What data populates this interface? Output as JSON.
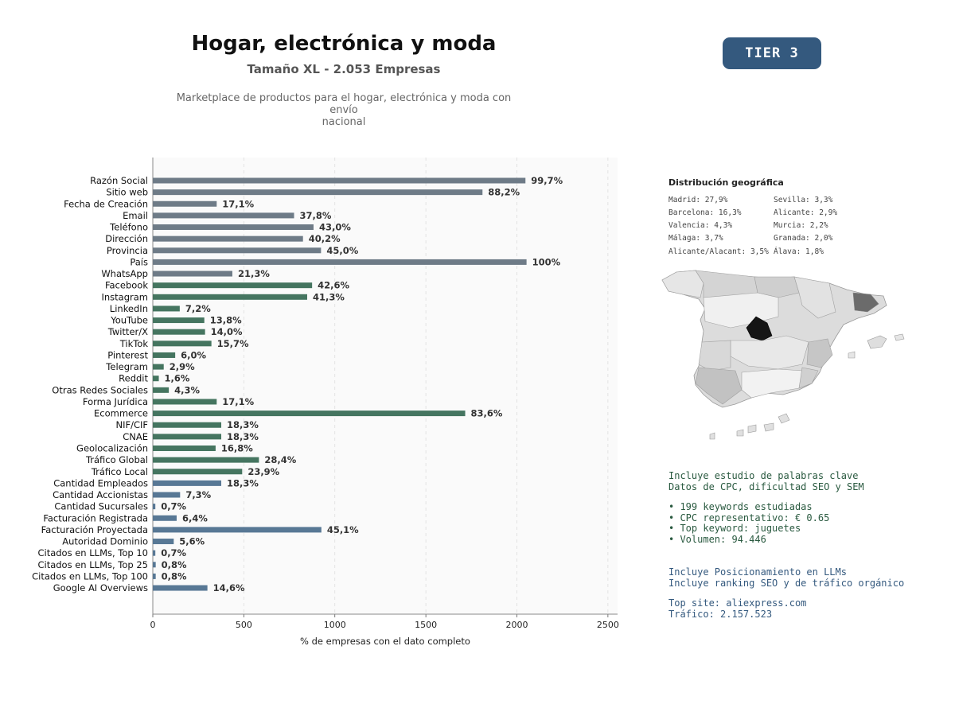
{
  "header": {
    "title": "Hogar, electrónica y moda",
    "subtitle": "Tamaño XL - 2.053 Empresas",
    "description_line1": "Marketplace de productos para el hogar, electrónica y moda con envío",
    "description_line2": "nacional",
    "tier": "TIER 3"
  },
  "colors": {
    "gray_bar": "#6e7b87",
    "green_bar": "#457560",
    "blue_bar": "#587895",
    "tier_badge": "#34597e",
    "keywords_text": "#2a5a40",
    "llm_text": "#34597e"
  },
  "chart_data": {
    "type": "bar",
    "orientation": "horizontal",
    "xlabel": "% de empresas con el dato completo",
    "ylabel": "",
    "xlim": [
      0,
      2553
    ],
    "xticks": [
      0,
      500,
      1000,
      1500,
      2000,
      2500
    ],
    "grid": "vertical dashed",
    "categories": [
      "Razón Social",
      "Sitio web",
      "Fecha de Creación",
      "Email",
      "Teléfono",
      "Dirección",
      "Provincia",
      "País",
      "WhatsApp",
      "Facebook",
      "Instagram",
      "LinkedIn",
      "YouTube",
      "Twitter/X",
      "TikTok",
      "Pinterest",
      "Telegram",
      "Reddit",
      "Otras Redes Sociales",
      "Forma Jurídica",
      "Ecommerce",
      "NIF/CIF",
      "CNAE",
      "Geolocalización",
      "Tráfico Global",
      "Tráfico Local",
      "Cantidad Empleados",
      "Cantidad Accionistas",
      "Cantidad Sucursales",
      "Facturación Registrada",
      "Facturación Proyectada",
      "Autoridad Dominio",
      "Citados en LLMs, Top 10",
      "Citados en LLMs, Top 25",
      "Citados en LLMs, Top 100",
      "Google AI Overviews"
    ],
    "values": [
      2047,
      1811,
      351,
      776,
      883,
      825,
      924,
      2053,
      437,
      875,
      848,
      148,
      283,
      287,
      322,
      123,
      60,
      33,
      88,
      351,
      1716,
      376,
      376,
      345,
      583,
      491,
      376,
      150,
      14,
      131,
      926,
      115,
      14,
      16,
      16,
      300
    ],
    "labels": [
      "99,7%",
      "88,2%",
      "17,1%",
      "37,8%",
      "43,0%",
      "40,2%",
      "45,0%",
      "100%",
      "21,3%",
      "42,6%",
      "41,3%",
      "7,2%",
      "13,8%",
      "14,0%",
      "15,7%",
      "6,0%",
      "2,9%",
      "1,6%",
      "4,3%",
      "17,1%",
      "83,6%",
      "18,3%",
      "18,3%",
      "16,8%",
      "28,4%",
      "23,9%",
      "18,3%",
      "7,3%",
      "0,7%",
      "6,4%",
      "45,1%",
      "5,6%",
      "0,7%",
      "0,8%",
      "0,8%",
      "14,6%"
    ],
    "groups": [
      "gray",
      "gray",
      "gray",
      "gray",
      "gray",
      "gray",
      "gray",
      "gray",
      "gray",
      "green",
      "green",
      "green",
      "green",
      "green",
      "green",
      "green",
      "green",
      "green",
      "green",
      "green",
      "green",
      "green",
      "green",
      "green",
      "green",
      "green",
      "blue",
      "blue",
      "blue",
      "blue",
      "blue",
      "blue",
      "blue",
      "blue",
      "blue",
      "blue"
    ]
  },
  "geo": {
    "title": "Distribución geográfica",
    "items": [
      "Madrid: 27,9%",
      "Barcelona: 16,3%",
      "Valencia: 4,3%",
      "Málaga: 3,7%",
      "Alicante/Alacant: 3,5%",
      "Sevilla: 3,3%",
      "Alicante: 2,9%",
      "Murcia: 2,2%",
      "Granada: 2,0%",
      "Álava: 1,8%"
    ]
  },
  "keywords": {
    "line1": "Incluye estudio de palabras clave",
    "line2": "Datos de CPC, dificultad SEO y SEM",
    "bullet1": "• 199 keywords estudiadas",
    "bullet2": "• CPC representativo: € 0.65",
    "bullet3": "• Top keyword: juguetes",
    "bullet4": "• Volumen: 94.446"
  },
  "llm": {
    "line1": "Incluye Posicionamiento en LLMs",
    "line2": "Incluye ranking SEO y de tráfico orgánico",
    "top_site": "Top site: aliexpress.com",
    "traffic": "Tráfico: 2.157.523"
  }
}
